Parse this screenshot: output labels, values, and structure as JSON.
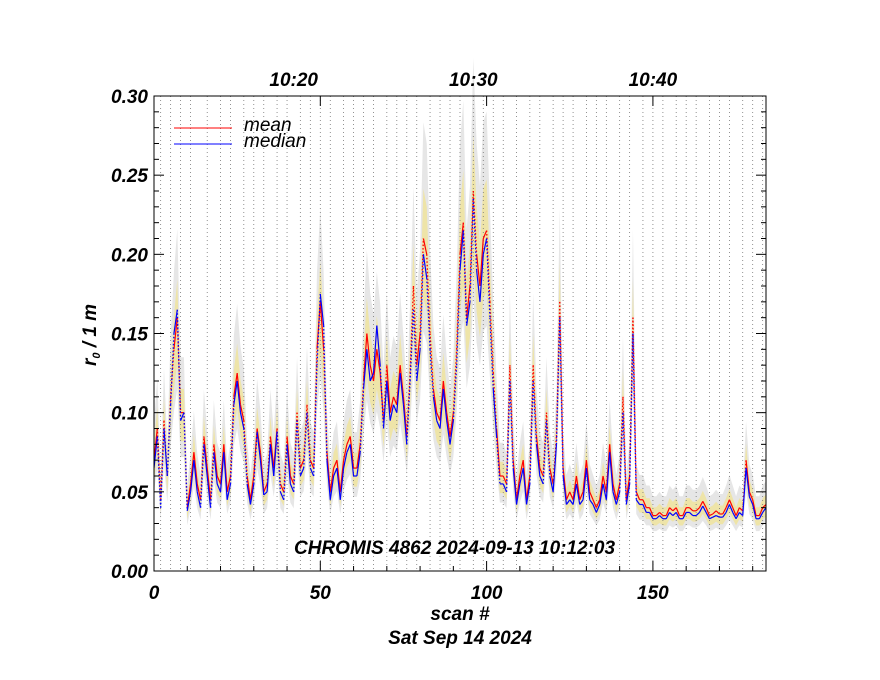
{
  "chart_data": {
    "type": "line",
    "annotation": "CHROMIS 4862 2024-09-13 10:12:03",
    "xlabel": "scan #",
    "xlabel2": "Sat Sep 14 2024",
    "ylabel_main": "r",
    "ylabel_sub": "0",
    "ylabel_rest": " / 1 m",
    "xlim": [
      0,
      184
    ],
    "ylim": [
      0,
      0.3
    ],
    "x_ticks": [
      {
        "v": 0,
        "label": "0"
      },
      {
        "v": 50,
        "label": "50"
      },
      {
        "v": 100,
        "label": "100"
      },
      {
        "v": 150,
        "label": "150"
      }
    ],
    "y_ticks": [
      {
        "v": 0.0,
        "label": "0.00"
      },
      {
        "v": 0.05,
        "label": "0.05"
      },
      {
        "v": 0.1,
        "label": "0.10"
      },
      {
        "v": 0.15,
        "label": "0.15"
      },
      {
        "v": 0.2,
        "label": "0.20"
      },
      {
        "v": 0.25,
        "label": "0.25"
      },
      {
        "v": 0.3,
        "label": "0.30"
      }
    ],
    "time_ticks": [
      {
        "v": 42,
        "label": "10:20"
      },
      {
        "v": 96,
        "label": "10:30"
      },
      {
        "v": 150,
        "label": "10:40"
      }
    ],
    "vertical_grid_x": [
      2,
      5,
      8,
      11,
      16,
      20,
      23,
      27,
      30,
      33,
      37,
      40,
      44,
      47,
      50,
      53,
      57,
      60,
      63,
      66,
      70,
      73,
      76,
      79,
      83,
      86,
      89,
      92,
      96,
      99,
      102,
      105,
      109,
      113,
      116,
      120,
      123,
      126,
      130,
      133,
      136,
      140,
      143,
      147,
      150,
      153,
      157,
      160,
      163,
      167,
      170,
      173,
      177,
      180,
      183
    ],
    "legend": [
      {
        "name": "mean",
        "color": "#ff0000"
      },
      {
        "name": "median",
        "color": "#0000ff"
      }
    ],
    "colors": {
      "mean": "#ff0000",
      "median": "#0000ff",
      "band_outer": "#e6e6e6",
      "band_inner": "#eee4a8"
    },
    "series": [
      {
        "name": "mean",
        "x": [
          0,
          1,
          2,
          3,
          4,
          5,
          6,
          7,
          8,
          9,
          10,
          11,
          12,
          13,
          14,
          15,
          16,
          17,
          18,
          19,
          20,
          21,
          22,
          23,
          24,
          25,
          26,
          27,
          28,
          29,
          30,
          31,
          32,
          33,
          34,
          35,
          36,
          37,
          38,
          39,
          40,
          41,
          42,
          43,
          44,
          45,
          46,
          47,
          48,
          49,
          50,
          51,
          52,
          53,
          54,
          55,
          56,
          57,
          58,
          59,
          60,
          61,
          62,
          63,
          64,
          65,
          66,
          67,
          68,
          69,
          70,
          71,
          72,
          73,
          74,
          75,
          76,
          77,
          78,
          79,
          80,
          81,
          82,
          83,
          84,
          85,
          86,
          87,
          88,
          89,
          90,
          91,
          92,
          93,
          94,
          95,
          96,
          97,
          98,
          99,
          100,
          101,
          102,
          103,
          104,
          105,
          106,
          107,
          108,
          109,
          110,
          111,
          112,
          113,
          114,
          115,
          116,
          117,
          118,
          119,
          120,
          121,
          122,
          123,
          124,
          125,
          126,
          127,
          128,
          129,
          130,
          131,
          132,
          133,
          134,
          135,
          136,
          137,
          138,
          139,
          140,
          141,
          142,
          143,
          144,
          145,
          146,
          147,
          148,
          149,
          150,
          151,
          152,
          153,
          154,
          155,
          156,
          157,
          158,
          159,
          160,
          161,
          162,
          163,
          164,
          165,
          166,
          167,
          168,
          169,
          170,
          171,
          172,
          173,
          174,
          175,
          176,
          177,
          178,
          179,
          180,
          181,
          182,
          183,
          184
        ],
        "y": [
          0.07,
          0.09,
          0.045,
          0.095,
          0.06,
          0.11,
          0.14,
          0.16,
          0.1,
          0.1,
          0.04,
          0.055,
          0.075,
          0.055,
          0.045,
          0.085,
          0.065,
          0.045,
          0.08,
          0.06,
          0.055,
          0.08,
          0.05,
          0.06,
          0.11,
          0.125,
          0.105,
          0.095,
          0.06,
          0.045,
          0.06,
          0.09,
          0.075,
          0.05,
          0.055,
          0.085,
          0.065,
          0.09,
          0.055,
          0.05,
          0.085,
          0.06,
          0.055,
          0.1,
          0.065,
          0.07,
          0.105,
          0.07,
          0.065,
          0.14,
          0.17,
          0.14,
          0.075,
          0.05,
          0.065,
          0.07,
          0.05,
          0.07,
          0.08,
          0.085,
          0.065,
          0.065,
          0.08,
          0.12,
          0.15,
          0.13,
          0.12,
          0.14,
          0.125,
          0.095,
          0.13,
          0.1,
          0.11,
          0.105,
          0.13,
          0.11,
          0.085,
          0.125,
          0.18,
          0.13,
          0.15,
          0.21,
          0.2,
          0.15,
          0.115,
          0.1,
          0.095,
          0.12,
          0.1,
          0.085,
          0.1,
          0.14,
          0.2,
          0.22,
          0.16,
          0.18,
          0.24,
          0.2,
          0.18,
          0.21,
          0.215,
          0.17,
          0.125,
          0.09,
          0.06,
          0.06,
          0.055,
          0.13,
          0.07,
          0.045,
          0.06,
          0.07,
          0.045,
          0.06,
          0.13,
          0.085,
          0.065,
          0.06,
          0.1,
          0.065,
          0.055,
          0.085,
          0.17,
          0.065,
          0.045,
          0.05,
          0.045,
          0.06,
          0.045,
          0.05,
          0.07,
          0.05,
          0.045,
          0.04,
          0.045,
          0.06,
          0.05,
          0.08,
          0.055,
          0.045,
          0.055,
          0.11,
          0.045,
          0.06,
          0.16,
          0.05,
          0.045,
          0.045,
          0.04,
          0.04,
          0.035,
          0.035,
          0.037,
          0.035,
          0.035,
          0.04,
          0.038,
          0.04,
          0.035,
          0.035,
          0.04,
          0.04,
          0.038,
          0.038,
          0.04,
          0.044,
          0.04,
          0.035,
          0.036,
          0.038,
          0.036,
          0.036,
          0.04,
          0.045,
          0.04,
          0.035,
          0.04,
          0.038,
          0.07,
          0.05,
          0.045,
          0.035,
          0.035,
          0.04,
          0.042
        ]
      },
      {
        "name": "median",
        "x": [
          0,
          1,
          2,
          3,
          4,
          5,
          6,
          7,
          8,
          9,
          10,
          11,
          12,
          13,
          14,
          15,
          16,
          17,
          18,
          19,
          20,
          21,
          22,
          23,
          24,
          25,
          26,
          27,
          28,
          29,
          30,
          31,
          32,
          33,
          34,
          35,
          36,
          37,
          38,
          39,
          40,
          41,
          42,
          43,
          44,
          45,
          46,
          47,
          48,
          49,
          50,
          51,
          52,
          53,
          54,
          55,
          56,
          57,
          58,
          59,
          60,
          61,
          62,
          63,
          64,
          65,
          66,
          67,
          68,
          69,
          70,
          71,
          72,
          73,
          74,
          75,
          76,
          77,
          78,
          79,
          80,
          81,
          82,
          83,
          84,
          85,
          86,
          87,
          88,
          89,
          90,
          91,
          92,
          93,
          94,
          95,
          96,
          97,
          98,
          99,
          100,
          101,
          102,
          103,
          104,
          105,
          106,
          107,
          108,
          109,
          110,
          111,
          112,
          113,
          114,
          115,
          116,
          117,
          118,
          119,
          120,
          121,
          122,
          123,
          124,
          125,
          126,
          127,
          128,
          129,
          130,
          131,
          132,
          133,
          134,
          135,
          136,
          137,
          138,
          139,
          140,
          141,
          142,
          143,
          144,
          145,
          146,
          147,
          148,
          149,
          150,
          151,
          152,
          153,
          154,
          155,
          156,
          157,
          158,
          159,
          160,
          161,
          162,
          163,
          164,
          165,
          166,
          167,
          168,
          169,
          170,
          171,
          172,
          173,
          174,
          175,
          176,
          177,
          178,
          179,
          180,
          181,
          182,
          183,
          184
        ],
        "y": [
          0.065,
          0.085,
          0.04,
          0.09,
          0.06,
          0.105,
          0.15,
          0.165,
          0.095,
          0.1,
          0.038,
          0.05,
          0.07,
          0.05,
          0.04,
          0.08,
          0.06,
          0.04,
          0.075,
          0.055,
          0.05,
          0.075,
          0.045,
          0.055,
          0.105,
          0.12,
          0.1,
          0.09,
          0.055,
          0.042,
          0.055,
          0.088,
          0.07,
          0.048,
          0.05,
          0.08,
          0.06,
          0.088,
          0.05,
          0.045,
          0.08,
          0.055,
          0.05,
          0.095,
          0.06,
          0.065,
          0.1,
          0.065,
          0.06,
          0.13,
          0.175,
          0.155,
          0.07,
          0.045,
          0.06,
          0.065,
          0.045,
          0.065,
          0.075,
          0.08,
          0.06,
          0.06,
          0.075,
          0.115,
          0.14,
          0.12,
          0.125,
          0.155,
          0.13,
          0.09,
          0.12,
          0.095,
          0.105,
          0.1,
          0.125,
          0.105,
          0.08,
          0.12,
          0.165,
          0.12,
          0.14,
          0.2,
          0.185,
          0.14,
          0.11,
          0.095,
          0.09,
          0.115,
          0.095,
          0.08,
          0.095,
          0.13,
          0.19,
          0.215,
          0.155,
          0.17,
          0.235,
          0.19,
          0.17,
          0.2,
          0.21,
          0.16,
          0.115,
          0.085,
          0.055,
          0.055,
          0.05,
          0.12,
          0.065,
          0.042,
          0.055,
          0.065,
          0.042,
          0.055,
          0.12,
          0.08,
          0.06,
          0.055,
          0.095,
          0.06,
          0.05,
          0.08,
          0.16,
          0.06,
          0.042,
          0.045,
          0.042,
          0.055,
          0.042,
          0.045,
          0.065,
          0.045,
          0.042,
          0.037,
          0.042,
          0.055,
          0.045,
          0.075,
          0.05,
          0.042,
          0.05,
          0.1,
          0.042,
          0.055,
          0.15,
          0.045,
          0.042,
          0.042,
          0.037,
          0.037,
          0.033,
          0.033,
          0.035,
          0.033,
          0.033,
          0.037,
          0.035,
          0.037,
          0.033,
          0.033,
          0.037,
          0.037,
          0.035,
          0.035,
          0.037,
          0.041,
          0.037,
          0.033,
          0.034,
          0.035,
          0.034,
          0.034,
          0.037,
          0.042,
          0.037,
          0.033,
          0.037,
          0.035,
          0.065,
          0.047,
          0.042,
          0.033,
          0.033,
          0.037,
          0.04
        ]
      }
    ]
  }
}
